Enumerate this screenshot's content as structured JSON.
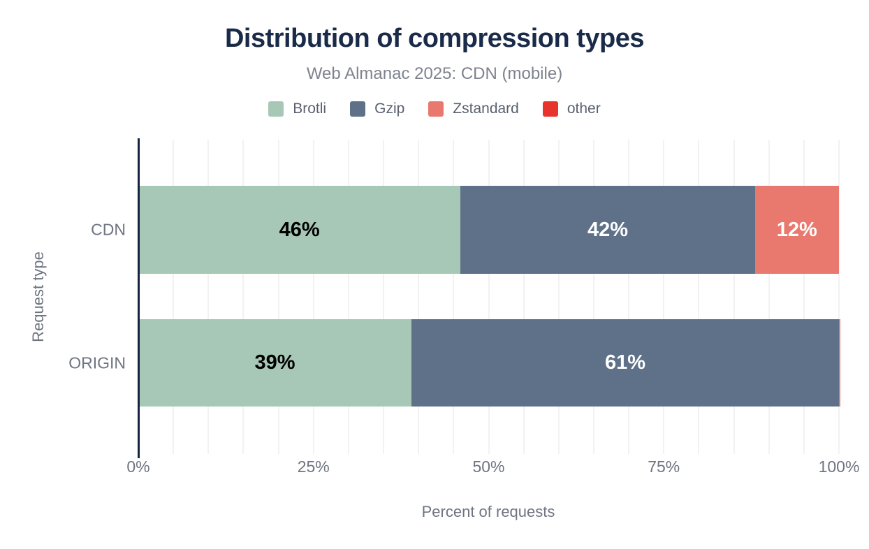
{
  "chart_data": {
    "type": "bar",
    "orientation": "horizontal-stacked",
    "title": "Distribution of compression types",
    "subtitle": "Web Almanac 2025: CDN (mobile)",
    "xlabel": "Percent of requests",
    "ylabel": "Request type",
    "xlim": [
      0,
      100
    ],
    "grid": "vertical, every 5%",
    "legend_position": "top-center",
    "categories": [
      "CDN",
      "ORIGIN"
    ],
    "series": [
      {
        "name": "Brotli",
        "color": "#a7c8b6",
        "label_color": "#000000",
        "values": [
          46,
          39
        ],
        "labels": [
          "46%",
          "39%"
        ]
      },
      {
        "name": "Gzip",
        "color": "#5e7189",
        "label_color": "#ffffff",
        "values": [
          42,
          61
        ],
        "labels": [
          "42%",
          "61%"
        ]
      },
      {
        "name": "Zstandard",
        "color": "#e9796f",
        "label_color": "#ffffff",
        "values": [
          12,
          0.2
        ],
        "labels": [
          "12%",
          ""
        ]
      },
      {
        "name": "other",
        "color": "#e7342c",
        "label_color": "#ffffff",
        "values": [
          0,
          0
        ],
        "labels": [
          "",
          ""
        ]
      }
    ],
    "x_ticks": [
      {
        "label": "0%",
        "value": 0
      },
      {
        "label": "25%",
        "value": 25
      },
      {
        "label": "50%",
        "value": 50
      },
      {
        "label": "75%",
        "value": 75
      },
      {
        "label": "100%",
        "value": 100
      }
    ],
    "colors": {
      "title": "#1a2b49",
      "subtitle_text": "#7e838d",
      "axis_text": "#6e7480",
      "y_axis_line": "#16233f",
      "gridline": "#f2f2f2"
    }
  }
}
